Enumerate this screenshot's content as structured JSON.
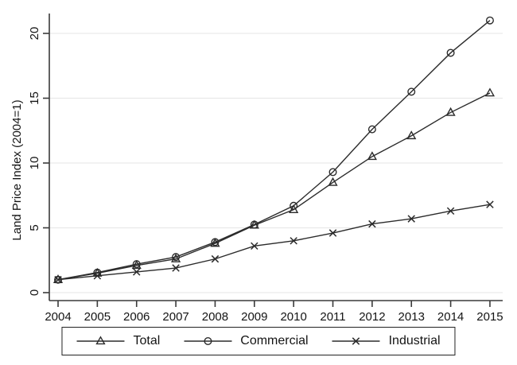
{
  "chart_data": {
    "type": "line",
    "title": "",
    "xlabel": "",
    "ylabel": "Land Price Index (2004=1)",
    "x": [
      2004,
      2005,
      2006,
      2007,
      2008,
      2009,
      2010,
      2011,
      2012,
      2013,
      2014,
      2015
    ],
    "series": [
      {
        "name": "Total",
        "marker": "triangle",
        "values": [
          1.0,
          1.5,
          2.1,
          2.6,
          3.8,
          5.2,
          6.4,
          8.5,
          10.5,
          12.1,
          13.9,
          15.4
        ]
      },
      {
        "name": "Commercial",
        "marker": "circle",
        "values": [
          1.0,
          1.55,
          2.2,
          2.75,
          3.9,
          5.25,
          6.7,
          9.3,
          12.6,
          15.5,
          18.5,
          21.0
        ]
      },
      {
        "name": "Industrial",
        "marker": "x",
        "values": [
          1.0,
          1.3,
          1.6,
          1.9,
          2.6,
          3.6,
          4.0,
          4.6,
          5.3,
          5.7,
          6.3,
          6.8
        ]
      }
    ],
    "yticks": [
      0,
      5,
      10,
      15,
      20
    ],
    "ylim": [
      0,
      21.5
    ],
    "grid": "horizontal",
    "legend_position": "bottom",
    "colors": {
      "line": "#2b2b2b",
      "grid": "#e9e9e9",
      "axis": "#3a3a3a",
      "text": "#141414",
      "background": "#ffffff"
    }
  }
}
